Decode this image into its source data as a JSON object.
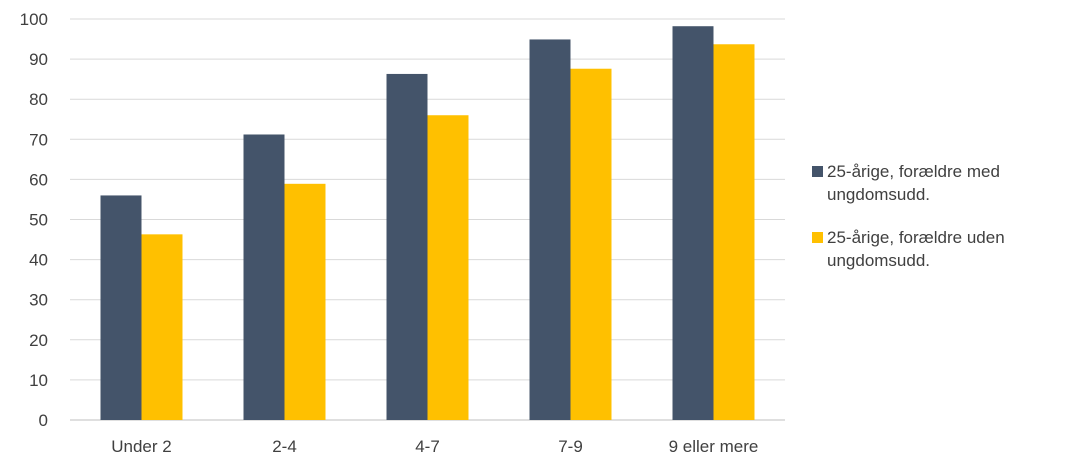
{
  "chart_data": {
    "type": "bar",
    "categories": [
      "Under 2",
      "2-4",
      "4-7",
      "7-9",
      "9 eller mere"
    ],
    "series": [
      {
        "name": "25-årige, forældre med ungdomsudd.",
        "color": "#44546a",
        "values": [
          56,
          71.2,
          86.3,
          94.9,
          98.2
        ]
      },
      {
        "name": "25-årige, forældre uden ungdomsudd.",
        "color": "#ffc000",
        "values": [
          46.3,
          58.9,
          76.0,
          87.6,
          93.7
        ]
      }
    ],
    "yticks": [
      "0",
      "10",
      "20",
      "30",
      "40",
      "50",
      "60",
      "70",
      "80",
      "90",
      "100"
    ],
    "ylim": [
      0,
      100
    ],
    "grid": true,
    "legend_position": "right"
  }
}
